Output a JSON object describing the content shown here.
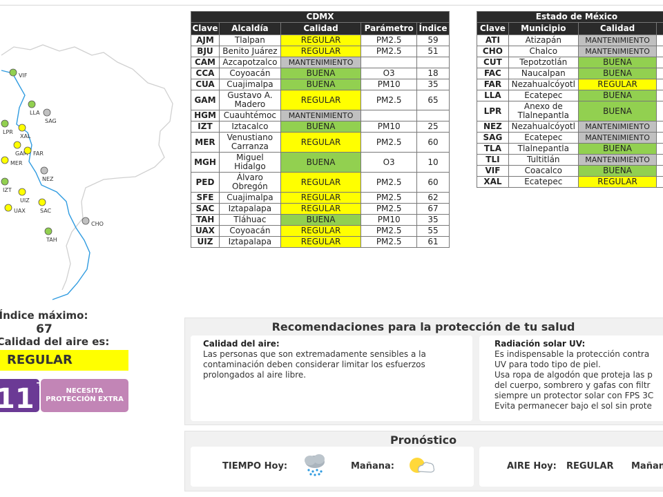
{
  "map": {
    "stations": [
      {
        "label": "VIF",
        "status": "BUENA"
      },
      {
        "label": "LLA",
        "status": "BUENA"
      },
      {
        "label": "SAG",
        "status": "MANTENIMIENTO"
      },
      {
        "label": "LPR",
        "status": "BUENA"
      },
      {
        "label": "XAL",
        "status": "REGULAR"
      },
      {
        "label": "GAM",
        "status": "REGULAR"
      },
      {
        "label": "FAR",
        "status": "REGULAR"
      },
      {
        "label": "MER",
        "status": "REGULAR"
      },
      {
        "label": "NEZ",
        "status": "MANTENIMIENTO"
      },
      {
        "label": "IZT",
        "status": "BUENA"
      },
      {
        "label": "UIZ",
        "status": "REGULAR"
      },
      {
        "label": "UAX",
        "status": "REGULAR"
      },
      {
        "label": "SAC",
        "status": "REGULAR"
      },
      {
        "label": "CHO",
        "status": "MANTENIMIENTO"
      },
      {
        "label": "TAH",
        "status": "BUENA"
      }
    ]
  },
  "summary": {
    "max_index_label": "Índice máximo:",
    "max_index_value": "67",
    "air_quality_label": "Calidad del aire es:",
    "air_quality_value": "REGULAR",
    "uv_index": "11",
    "uv_plus": "+",
    "uv_message_line1": "NECESITA",
    "uv_message_line2": "PROTECCIÓN EXTRA"
  },
  "tables": {
    "cdmx": {
      "title": "CDMX",
      "headers": [
        "Clave",
        "Alcaldía",
        "Calidad",
        "Parámetro",
        "Índice"
      ],
      "rows": [
        [
          "AJM",
          "Tlalpan",
          "REGULAR",
          "PM2.5",
          "59"
        ],
        [
          "BJU",
          "Benito Juárez",
          "REGULAR",
          "PM2.5",
          "51"
        ],
        [
          "CAM",
          "Azcapotzalco",
          "MANTENIMIENTO",
          "",
          ""
        ],
        [
          "CCA",
          "Coyoacán",
          "BUENA",
          "O3",
          "18"
        ],
        [
          "CUA",
          "Cuajimalpa",
          "BUENA",
          "PM10",
          "35"
        ],
        [
          "GAM",
          "Gustavo A. Madero",
          "REGULAR",
          "PM2.5",
          "65"
        ],
        [
          "HGM",
          "Cuauhtémoc",
          "MANTENIMIENTO",
          "",
          ""
        ],
        [
          "IZT",
          "Iztacalco",
          "BUENA",
          "PM10",
          "25"
        ],
        [
          "MER",
          "Venustiano Carranza",
          "REGULAR",
          "PM2.5",
          "60"
        ],
        [
          "MGH",
          "Miguel Hidalgo",
          "BUENA",
          "O3",
          "10"
        ],
        [
          "PED",
          "Álvaro Obregón",
          "REGULAR",
          "PM2.5",
          "60"
        ],
        [
          "SFE",
          "Cuajimalpa",
          "REGULAR",
          "PM2.5",
          "62"
        ],
        [
          "SAC",
          "Iztapalapa",
          "REGULAR",
          "PM2.5",
          "67"
        ],
        [
          "TAH",
          "Tláhuac",
          "BUENA",
          "PM10",
          "35"
        ],
        [
          "UAX",
          "Coyoacán",
          "REGULAR",
          "PM2.5",
          "55"
        ],
        [
          "UIZ",
          "Iztapalapa",
          "REGULAR",
          "PM2.5",
          "61"
        ]
      ]
    },
    "edomex": {
      "title": "Estado de México",
      "headers": [
        "Clave",
        "Municipio",
        "Calidad",
        "P"
      ],
      "rows": [
        [
          "ATI",
          "Atizapán",
          "MANTENIMIENTO"
        ],
        [
          "CHO",
          "Chalco",
          "MANTENIMIENTO"
        ],
        [
          "CUT",
          "Tepotzotlán",
          "BUENA"
        ],
        [
          "FAC",
          "Naucalpan",
          "BUENA"
        ],
        [
          "FAR",
          "Nezahualcóyotl",
          "REGULAR"
        ],
        [
          "LLA",
          "Ecatepec",
          "BUENA"
        ],
        [
          "LPR",
          "Anexo de Tlalnepantla",
          "BUENA"
        ],
        [
          "NEZ",
          "Nezahualcóyotl",
          "MANTENIMIENTO"
        ],
        [
          "SAG",
          "Ecatepec",
          "MANTENIMIENTO"
        ],
        [
          "TLA",
          "Tlalnepantla",
          "BUENA"
        ],
        [
          "TLI",
          "Tultitlán",
          "MANTENIMIENTO"
        ],
        [
          "VIF",
          "Coacalco",
          "BUENA"
        ],
        [
          "XAL",
          "Ecatepec",
          "REGULAR"
        ]
      ]
    }
  },
  "recommendations": {
    "title": "Recomendaciones para la protección de tu salud",
    "air_title": "Calidad del aire:",
    "air_text": "Las personas que son extremadamente sensibles a la contaminación deben considerar limitar los esfuerzos prolongados al aire libre.",
    "uv_title": "Radiación solar UV:",
    "uv_text": "Es indispensable la protección contra\nUV para todo tipo de piel.\nUsa ropa de algodón que proteja las p\ndel cuerpo, sombrero y gafas con filtr\nsiempre un protector solar con FPS 3C\nEvita permanecer bajo el sol sin prote"
  },
  "forecast": {
    "title": "Pronóstico",
    "weather_today_label": "TIEMPO Hoy:",
    "weather_today_icon": "rain-cloud-icon",
    "weather_tomorrow_label": "Mañana:",
    "weather_tomorrow_icon": "sun-cloud-icon",
    "air_today_label": "AIRE Hoy:",
    "air_today_value": "REGULAR",
    "air_tomorrow_label": "Mañan"
  },
  "colors": {
    "REGULAR": "#ffff00",
    "BUENA": "#92d050",
    "MANTENIMIENTO": "#c0c0c0",
    "map_line": "#2196f3",
    "uv_purple": "#6b3a95",
    "uv_pink": "#c285b6"
  }
}
